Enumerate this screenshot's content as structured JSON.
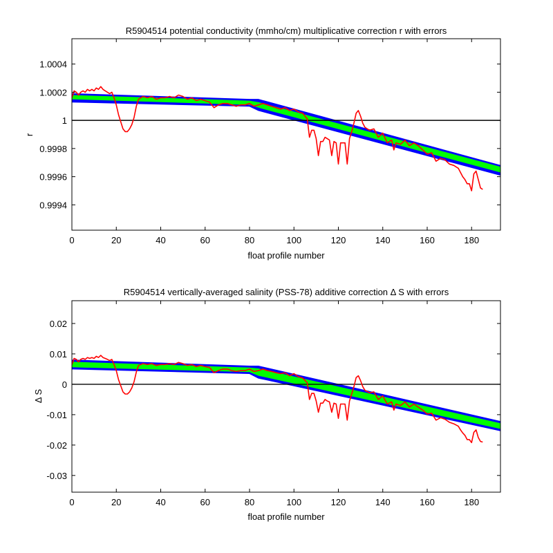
{
  "chart_data": [
    {
      "type": "line",
      "title": "R5904514 potential conductivity (mmho/cm) multiplicative correction r with errors",
      "xlabel": "float profile number",
      "ylabel": "r",
      "xlim": [
        0,
        193
      ],
      "ylim": [
        0.99922,
        1.00058
      ],
      "xticks": [
        0,
        20,
        40,
        60,
        80,
        100,
        120,
        140,
        160,
        180
      ],
      "yticks": [
        0.9994,
        0.9996,
        0.9998,
        1,
        1.0002,
        1.0004
      ],
      "ytick_labels": [
        "0.9994",
        "0.9996",
        "0.9998",
        "1",
        "1.0002",
        "1.0004"
      ],
      "reference_line": 1,
      "colors": {
        "band_outer": "#0000ff",
        "band_inner": "#00ff00",
        "series": "#ff0000",
        "reference": "#000000"
      },
      "band_outer": {
        "x": [
          0,
          80,
          84,
          193
        ],
        "upper": [
          1.00019,
          1.00015,
          1.00015,
          0.99968
        ],
        "lower": [
          1.00013,
          1.0001,
          1.00007,
          0.99961
        ]
      },
      "band_inner": {
        "x": [
          0,
          80,
          84,
          193
        ],
        "upper": [
          1.00018,
          1.00014,
          1.00013,
          0.99967
        ],
        "lower": [
          1.00015,
          1.00011,
          1.00009,
          0.99963
        ]
      },
      "series": [
        {
          "x": [
            0,
            1,
            2,
            3,
            4,
            5,
            6,
            7,
            8,
            9,
            10,
            11,
            12,
            13,
            14,
            15,
            16,
            17,
            18,
            19,
            20,
            21,
            22,
            23,
            24,
            25,
            26,
            27,
            28,
            29,
            30,
            32,
            34,
            36,
            38,
            40,
            42,
            44,
            46,
            48,
            50,
            52,
            54,
            56,
            58,
            60,
            62,
            64,
            66,
            68,
            70,
            72,
            74,
            76,
            78,
            80,
            82,
            84,
            86,
            88,
            90,
            92,
            94,
            96,
            98,
            100,
            102,
            104,
            106,
            107,
            108,
            109,
            110,
            111,
            112,
            113,
            114,
            115,
            116,
            117,
            118,
            119,
            120,
            121,
            122,
            123,
            124,
            125,
            126,
            127,
            128,
            129,
            130,
            131,
            132,
            134,
            136,
            138,
            140,
            142,
            144,
            145,
            146,
            148,
            150,
            152,
            154,
            156,
            158,
            160,
            162,
            164,
            166,
            168,
            170,
            172,
            174,
            175,
            176,
            177,
            178,
            179,
            180,
            181,
            182,
            183,
            184,
            185
          ],
          "values": [
            1.00016,
            1.00021,
            1.0002,
            1.00018,
            1.0002,
            1.00021,
            1.0002,
            1.00022,
            1.00021,
            1.00022,
            1.00021,
            1.00023,
            1.00022,
            1.00024,
            1.00022,
            1.00021,
            1.0002,
            1.00019,
            1.0002,
            1.00016,
            1.00011,
            1.00004,
            0.99999,
            0.99994,
            0.99992,
            0.99992,
            0.99994,
            0.99997,
            1.00002,
            1.0001,
            1.00015,
            1.00017,
            1.00016,
            1.00017,
            1.00015,
            1.00016,
            1.00016,
            1.00017,
            1.00016,
            1.00018,
            1.00017,
            1.00015,
            1.00016,
            1.00014,
            1.00015,
            1.00014,
            1.00013,
            1.00009,
            1.00011,
            1.00012,
            1.00012,
            1.00011,
            1.0001,
            1.00011,
            1.00011,
            1.00012,
            1.0001,
            1.00011,
            1.00012,
            1.00011,
            1.0001,
            1.00009,
            1.00008,
            1.00009,
            1.00007,
            1.00008,
            1.00006,
            1.00005,
            1.00001,
            0.99988,
            0.99993,
            0.99993,
            0.99987,
            0.99975,
            0.99985,
            0.99985,
            0.99988,
            0.99987,
            0.99986,
            0.99975,
            0.99985,
            0.99984,
            0.99969,
            0.99984,
            0.99984,
            0.99984,
            0.99969,
            0.99987,
            0.99992,
            0.99998,
            1.00005,
            1.00007,
            1.00003,
            0.99998,
            0.99995,
            0.99993,
            0.99994,
            0.99988,
            0.99991,
            0.99984,
            0.99986,
            0.99979,
            0.99984,
            0.99983,
            0.99986,
            0.99982,
            0.99984,
            0.99982,
            0.99979,
            0.99976,
            0.99977,
            0.99971,
            0.99973,
            0.99972,
            0.99969,
            0.99968,
            0.99966,
            0.99963,
            0.9996,
            0.99958,
            0.99955,
            0.99955,
            0.9995,
            0.99962,
            0.99964,
            0.99958,
            0.99952,
            0.99951
          ]
        }
      ]
    },
    {
      "type": "line",
      "title": "R5904514 vertically-averaged salinity (PSS-78) additive correction Δ S with errors",
      "xlabel": "float profile number",
      "ylabel": "Δ S",
      "xlim": [
        0,
        193
      ],
      "ylim": [
        -0.0355,
        0.0275
      ],
      "xticks": [
        0,
        20,
        40,
        60,
        80,
        100,
        120,
        140,
        160,
        180
      ],
      "yticks": [
        -0.03,
        -0.02,
        -0.01,
        0,
        0.01,
        0.02
      ],
      "ytick_labels": [
        "-0.03",
        "-0.02",
        "-0.01",
        "0",
        "0.01",
        "0.02"
      ],
      "reference_line": 0,
      "colors": {
        "band_outer": "#0000ff",
        "band_inner": "#00ff00",
        "series": "#ff0000",
        "reference": "#000000"
      },
      "band_outer": {
        "x": [
          0,
          80,
          84,
          193
        ],
        "upper": [
          0.008,
          0.006,
          0.006,
          -0.0122
        ],
        "lower": [
          0.005,
          0.0035,
          0.002,
          -0.0153
        ]
      },
      "band_inner": {
        "x": [
          0,
          80,
          84,
          193
        ],
        "upper": [
          0.0074,
          0.0055,
          0.0052,
          -0.0128
        ],
        "lower": [
          0.0056,
          0.004,
          0.0028,
          -0.0147
        ]
      },
      "series": [
        {
          "x": [
            0,
            1,
            2,
            3,
            4,
            5,
            6,
            7,
            8,
            9,
            10,
            11,
            12,
            13,
            14,
            15,
            16,
            17,
            18,
            19,
            20,
            21,
            22,
            23,
            24,
            25,
            26,
            27,
            28,
            29,
            30,
            32,
            34,
            36,
            38,
            40,
            42,
            44,
            46,
            48,
            50,
            52,
            54,
            56,
            58,
            60,
            62,
            64,
            66,
            68,
            70,
            72,
            74,
            76,
            78,
            80,
            82,
            84,
            86,
            88,
            90,
            92,
            94,
            96,
            98,
            100,
            102,
            104,
            106,
            107,
            108,
            109,
            110,
            111,
            112,
            113,
            114,
            115,
            116,
            117,
            118,
            119,
            120,
            121,
            122,
            123,
            124,
            125,
            126,
            127,
            128,
            129,
            130,
            131,
            132,
            134,
            136,
            138,
            140,
            142,
            144,
            145,
            146,
            148,
            150,
            152,
            154,
            156,
            158,
            160,
            162,
            164,
            166,
            168,
            170,
            172,
            174,
            175,
            176,
            177,
            178,
            179,
            180,
            181,
            182,
            183,
            184,
            185
          ],
          "values": [
            0.0065,
            0.0085,
            0.0082,
            0.0074,
            0.0082,
            0.0085,
            0.0082,
            0.0088,
            0.0085,
            0.0088,
            0.0085,
            0.0092,
            0.0088,
            0.0095,
            0.0088,
            0.0085,
            0.0082,
            0.0078,
            0.0082,
            0.0065,
            0.0045,
            0.0015,
            -0.0005,
            -0.0025,
            -0.0032,
            -0.0032,
            -0.0025,
            -0.0012,
            0.0008,
            0.004,
            0.0062,
            0.0068,
            0.0065,
            0.0068,
            0.0062,
            0.0065,
            0.0065,
            0.0068,
            0.0065,
            0.0072,
            0.0068,
            0.0062,
            0.0065,
            0.0058,
            0.0062,
            0.0058,
            0.0055,
            0.0038,
            0.0045,
            0.005,
            0.005,
            0.0045,
            0.0042,
            0.0045,
            0.0045,
            0.005,
            0.0042,
            0.0045,
            0.005,
            0.0045,
            0.0042,
            0.0038,
            0.0035,
            0.0038,
            0.0028,
            0.0035,
            0.0025,
            0.002,
            0.0005,
            -0.005,
            -0.003,
            -0.003,
            -0.0055,
            -0.0092,
            -0.0062,
            -0.0062,
            -0.005,
            -0.0055,
            -0.0058,
            -0.0092,
            -0.0062,
            -0.0065,
            -0.0112,
            -0.0065,
            -0.0065,
            -0.0065,
            -0.0118,
            -0.0055,
            -0.0032,
            -0.0008,
            0.0022,
            0.0028,
            0.0012,
            -0.0008,
            -0.002,
            -0.0028,
            -0.0025,
            -0.005,
            -0.0038,
            -0.0065,
            -0.0058,
            -0.0085,
            -0.0065,
            -0.007,
            -0.0058,
            -0.0075,
            -0.0065,
            -0.0075,
            -0.0085,
            -0.0098,
            -0.0095,
            -0.0118,
            -0.011,
            -0.0115,
            -0.0125,
            -0.013,
            -0.0138,
            -0.015,
            -0.016,
            -0.0168,
            -0.0182,
            -0.0182,
            -0.0192,
            -0.0158,
            -0.015,
            -0.0175,
            -0.0188,
            -0.019
          ]
        }
      ]
    }
  ]
}
